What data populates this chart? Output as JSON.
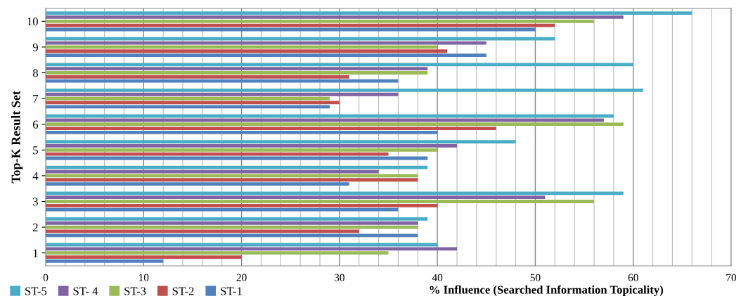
{
  "chart_data": {
    "type": "bar",
    "orientation": "horizontal",
    "ylabel": "Top-K Result Set",
    "xlabel": "% Influence (Searched Information Topicality)",
    "categories": [
      "10",
      "9",
      "8",
      "7",
      "6",
      "5",
      "4",
      "3",
      "2",
      "1"
    ],
    "series": [
      {
        "name": "ST-5",
        "color": "#4bacc6",
        "values": [
          66,
          52,
          60,
          61,
          58,
          48,
          39,
          59,
          39,
          40
        ]
      },
      {
        "name": "ST- 4",
        "color": "#8064a2",
        "values": [
          59,
          45,
          39,
          36,
          57,
          42,
          34,
          51,
          38,
          42
        ]
      },
      {
        "name": "ST-3",
        "color": "#9bbb59",
        "values": [
          56,
          40,
          39,
          29,
          59,
          40,
          38,
          56,
          38,
          35
        ]
      },
      {
        "name": "ST-2",
        "color": "#c0504d",
        "values": [
          52,
          41,
          31,
          30,
          46,
          35,
          38,
          40,
          32,
          20
        ]
      },
      {
        "name": "ST-1",
        "color": "#4f81bd",
        "values": [
          50,
          45,
          36,
          29,
          40,
          39,
          31,
          36,
          38,
          12
        ]
      }
    ],
    "xlim": [
      0,
      70
    ],
    "xticks": [
      0,
      {
        "value": 2,
        "label": null
      },
      {
        "value": 4,
        "label": null
      },
      {
        "value": 6,
        "label": null
      },
      {
        "value": 8,
        "label": null
      },
      10,
      {
        "value": 12,
        "label": null
      },
      {
        "value": 14,
        "label": null
      },
      {
        "value": 16,
        "label": null
      },
      {
        "value": 18,
        "label": null
      },
      20,
      {
        "value": 22,
        "label": null
      },
      {
        "value": 24,
        "label": null
      },
      {
        "value": 26,
        "label": null
      },
      {
        "value": 28,
        "label": null
      },
      30,
      {
        "value": 32,
        "label": null
      },
      {
        "value": 34,
        "label": null
      },
      {
        "value": 36,
        "label": null
      },
      {
        "value": 38,
        "label": null
      },
      40,
      {
        "value": 42,
        "label": null
      },
      {
        "value": 44,
        "label": null
      },
      {
        "value": 46,
        "label": null
      },
      {
        "value": 48,
        "label": null
      },
      50,
      {
        "value": 52,
        "label": null
      },
      {
        "value": 54,
        "label": null
      },
      {
        "value": 56,
        "label": null
      },
      {
        "value": 58,
        "label": null
      },
      60,
      {
        "value": 62,
        "label": null
      },
      {
        "value": 64,
        "label": null
      },
      {
        "value": 66,
        "label": null
      },
      {
        "value": 68,
        "label": null
      },
      70
    ],
    "grid": "x",
    "legend": "bottom left"
  }
}
